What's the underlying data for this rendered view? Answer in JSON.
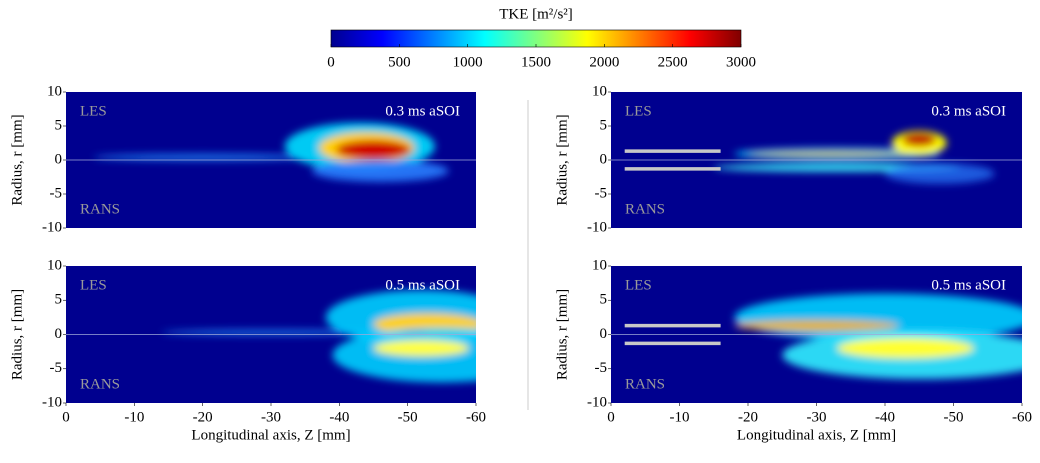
{
  "colorbar": {
    "title": "TKE [m²/s²]",
    "lim": [
      0,
      3000
    ],
    "ticks": [
      0,
      500,
      1000,
      1500,
      2000,
      2500,
      3000
    ]
  },
  "chart_data": [
    {
      "type": "heatmap",
      "ylabel": "Radius, r [mm]",
      "ylim": [
        -10,
        10
      ],
      "yticks": [
        10,
        5,
        0,
        -5,
        -10
      ],
      "xlim": [
        0,
        -60
      ],
      "upper_label": "LES",
      "lower_label": "RANS",
      "annotation": "0.3 ms aSOI"
    },
    {
      "type": "heatmap",
      "ylabel": "Radius, r [mm]",
      "ylim": [
        -10,
        10
      ],
      "yticks": [
        10,
        5,
        0,
        -5,
        -10
      ],
      "xlim": [
        0,
        -60
      ],
      "upper_label": "LES",
      "lower_label": "RANS",
      "annotation": "0.3 ms aSOI"
    },
    {
      "type": "heatmap",
      "ylabel": "Radius, r [mm]",
      "ylim": [
        -10,
        10
      ],
      "yticks": [
        10,
        5,
        0,
        -5,
        -10
      ],
      "xlim": [
        0,
        -60
      ],
      "xticks": [
        0,
        -10,
        -20,
        -30,
        -40,
        -50,
        -60
      ],
      "xlabel": "Longitudinal axis, Z [mm]",
      "upper_label": "LES",
      "lower_label": "RANS",
      "annotation": "0.5 ms aSOI"
    },
    {
      "type": "heatmap",
      "ylabel": "Radius, r [mm]",
      "ylim": [
        -10,
        10
      ],
      "yticks": [
        10,
        5,
        0,
        -5,
        -10
      ],
      "xlim": [
        0,
        -60
      ],
      "xticks": [
        0,
        -10,
        -20,
        -30,
        -40,
        -50,
        -60
      ],
      "xlabel": "Longitudinal axis, Z [mm]",
      "upper_label": "LES",
      "lower_label": "RANS",
      "annotation": "0.5 ms aSOI"
    }
  ]
}
